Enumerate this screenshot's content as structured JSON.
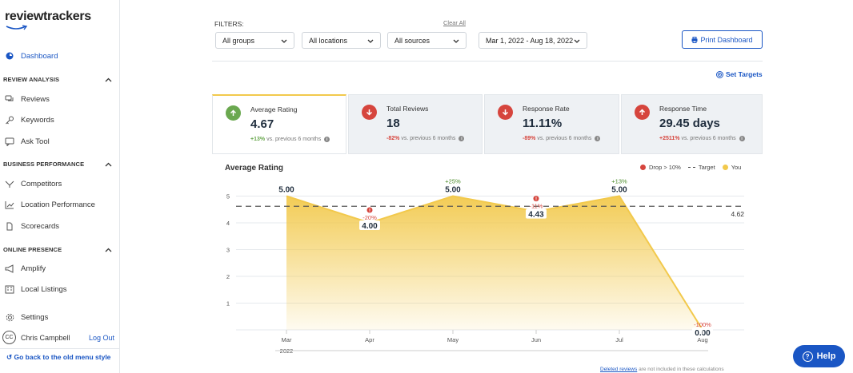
{
  "brand": {
    "logo": "reviewtrackers"
  },
  "sidebar": {
    "dashboard": "Dashboard",
    "sections": [
      {
        "title": "REVIEW ANALYSIS",
        "items": [
          "Reviews",
          "Keywords",
          "Ask Tool"
        ]
      },
      {
        "title": "BUSINESS PERFORMANCE",
        "items": [
          "Competitors",
          "Location Performance",
          "Scorecards"
        ]
      },
      {
        "title": "ONLINE PRESENCE",
        "items": [
          "Amplify",
          "Local Listings"
        ]
      }
    ],
    "settings": "Settings",
    "user": {
      "initials": "CC",
      "name": "Chris Campbell",
      "logout": "Log Out"
    },
    "old_menu": "Go back to the old menu style"
  },
  "filters": {
    "label": "FILTERS:",
    "clear_all": "Clear All",
    "groups": "All groups",
    "locations": "All locations",
    "sources": "All sources",
    "date_range": "Mar 1, 2022 - Aug 18, 2022",
    "print": "Print Dashboard",
    "set_targets": "Set Targets"
  },
  "kpis": [
    {
      "title": "Average Rating",
      "value": "4.67",
      "delta": "+13%",
      "delta_text": "vs. previous 6 months",
      "direction": "up"
    },
    {
      "title": "Total Reviews",
      "value": "18",
      "delta": "-82%",
      "delta_text": "vs. previous 6 months",
      "direction": "down"
    },
    {
      "title": "Response Rate",
      "value": "11.11%",
      "delta": "-89%",
      "delta_text": "vs. previous 6 months",
      "direction": "down"
    },
    {
      "title": "Response Time",
      "value": "29.45 days",
      "delta": "+2511%",
      "delta_text": "vs. previous 6 months",
      "direction": "up"
    }
  ],
  "colors": {
    "accent": "#1a56c4",
    "up": "#6aa84f",
    "down": "#d6453d",
    "series": "#f2c94c"
  },
  "chart_data": {
    "type": "area",
    "title": "Average Rating",
    "legend": [
      "Drop > 10%",
      "Target",
      "You"
    ],
    "categories": [
      "Mar",
      "Apr",
      "May",
      "Jun",
      "Jul",
      "Aug"
    ],
    "year_label": "2022",
    "series": [
      {
        "name": "You",
        "values": [
          5.0,
          4.0,
          5.0,
          4.43,
          5.0,
          0.0
        ],
        "labels": [
          "5.00",
          "4.00",
          "5.00",
          "4.43",
          "5.00",
          "0.00"
        ],
        "changes": [
          "",
          "-20%",
          "+25%",
          "-11%",
          "+13%",
          "-100%"
        ],
        "drop_flags": [
          false,
          true,
          false,
          true,
          false,
          false
        ]
      }
    ],
    "target": {
      "value": 4.62,
      "label": "4.62"
    },
    "y_ticks": [
      "1",
      "2",
      "3",
      "4",
      "5"
    ],
    "ylim": [
      0,
      5
    ],
    "grid": true
  },
  "footnote": {
    "link": "Deleted reviews",
    "text": "are not included in these calculations"
  },
  "help": "Help"
}
